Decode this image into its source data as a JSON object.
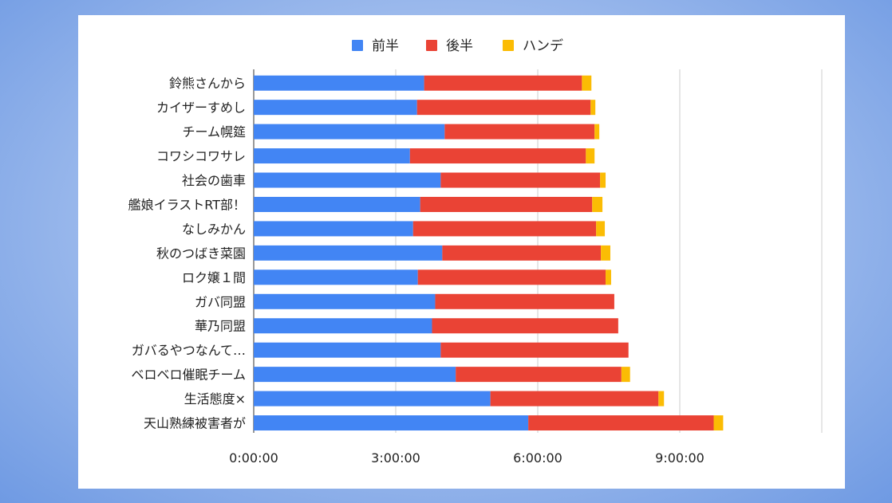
{
  "chart_data": {
    "type": "bar",
    "orientation": "horizontal",
    "stacked": true,
    "legend_position": "top",
    "grid": true,
    "categories": [
      "鈴熊さんから",
      "カイザーすめし",
      "チーム幌筵",
      "コワシコワサレ",
      "社会の歯車",
      "艦娘イラストRT部！",
      "なしみかん",
      "秋のつばき菜園",
      "ロク嬢１間",
      "ガバ同盟",
      "華乃同盟",
      "ガバるやつなんて…",
      "ベロベロ催眠チーム",
      "生活態度×",
      "天山熟練被害者が"
    ],
    "series": [
      {
        "name": "前半",
        "color": "#4285f4",
        "values": [
          "3:36:00",
          "3:27:00",
          "4:02:00",
          "3:18:00",
          "3:57:00",
          "3:31:00",
          "3:22:00",
          "3:59:00",
          "3:28:00",
          "3:50:00",
          "3:46:00",
          "3:57:00",
          "4:16:00",
          "5:00:00",
          "5:48:00"
        ]
      },
      {
        "name": "後半",
        "color": "#ea4335",
        "values": [
          "3:20:00",
          "3:40:00",
          "3:10:00",
          "3:43:00",
          "3:22:00",
          "3:38:00",
          "3:52:00",
          "3:21:00",
          "3:58:00",
          "3:47:00",
          "3:56:00",
          "3:58:00",
          "3:30:00",
          "3:33:00",
          "3:55:00"
        ]
      },
      {
        "name": "ハンデ",
        "color": "#fbbc04",
        "values": [
          "0:12:00",
          "0:06:00",
          "0:06:00",
          "0:11:00",
          "0:07:00",
          "0:13:00",
          "0:11:00",
          "0:12:00",
          "0:07:00",
          "0:00:00",
          "0:00:00",
          "0:00:00",
          "0:11:00",
          "0:07:00",
          "0:12:00"
        ]
      }
    ],
    "x_ticks": [
      "0:00:00",
      "3:00:00",
      "6:00:00",
      "9:00:00"
    ],
    "xlim": [
      "0:00:00",
      "12:00:00"
    ]
  }
}
